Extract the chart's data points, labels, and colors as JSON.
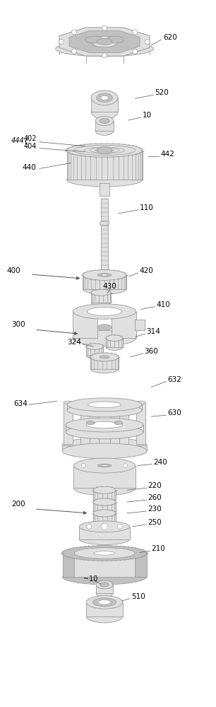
{
  "bg_color": "#ffffff",
  "lc": "#999999",
  "dc": "#555555",
  "fc": "#e0e0e0",
  "fdc": "#c0c0c0",
  "white": "#ffffff",
  "components_y": {
    "620": 55,
    "520": 135,
    "10t": 168,
    "440": 210,
    "110": 310,
    "420": 388,
    "430": 413,
    "410": 440,
    "314": 478,
    "324": 490,
    "360": 505,
    "630": 565,
    "240": 660,
    "220": 695,
    "260": 712,
    "230": 728,
    "250": 747,
    "210": 785,
    "10b": 830,
    "510": 855
  }
}
